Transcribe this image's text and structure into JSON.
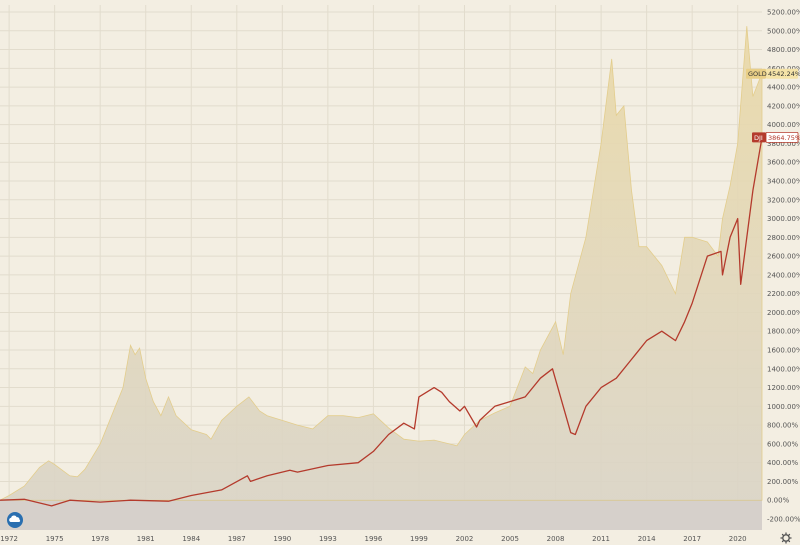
{
  "chart_data": {
    "type": "area",
    "x_unit": "year",
    "x_ticks": [
      "1972",
      "1975",
      "1978",
      "1981",
      "1984",
      "1987",
      "1990",
      "1993",
      "1996",
      "1999",
      "2002",
      "2005",
      "2008",
      "2011",
      "2014",
      "2017",
      "2020"
    ],
    "y_ticks": [
      "-200.00%",
      "0.00%",
      "200.00%",
      "400.00%",
      "600.00%",
      "800.00%",
      "1000.00%",
      "1200.00%",
      "1400.00%",
      "1600.00%",
      "1800.00%",
      "2000.00%",
      "2200.00%",
      "2400.00%",
      "2600.00%",
      "2800.00%",
      "3000.00%",
      "3200.00%",
      "3400.00%",
      "3600.00%",
      "3800.00%",
      "4000.00%",
      "4200.00%",
      "4400.00%",
      "4600.00%",
      "4800.00%",
      "5000.00%",
      "5200.00%"
    ],
    "ylim": [
      -200,
      5200
    ],
    "xlim": [
      1971.4,
      2021.6
    ],
    "grid": true,
    "series": [
      {
        "name": "GOLD",
        "kind": "area",
        "color": "#e9d8a6",
        "last_label": "4542.24%",
        "x": [
          1971.4,
          1972.0,
          1973.0,
          1974.0,
          1974.6,
          1975.0,
          1976.0,
          1976.5,
          1977.0,
          1978.0,
          1979.0,
          1979.5,
          1980.0,
          1980.3,
          1980.6,
          1981.0,
          1981.5,
          1982.0,
          1982.5,
          1983.0,
          1984.0,
          1985.0,
          1985.3,
          1986.0,
          1987.0,
          1987.8,
          1988.5,
          1989.0,
          1990.0,
          1991.0,
          1992.0,
          1993.0,
          1994.0,
          1995.0,
          1996.0,
          1997.0,
          1998.0,
          1999.0,
          2000.0,
          2001.0,
          2001.5,
          2002.0,
          2003.0,
          2004.0,
          2005.0,
          2006.0,
          2006.5,
          2007.0,
          2008.0,
          2008.5,
          2009.0,
          2010.0,
          2011.0,
          2011.7,
          2012.0,
          2012.5,
          2013.0,
          2013.5,
          2014.0,
          2015.0,
          2015.9,
          2016.5,
          2017.0,
          2018.0,
          2018.7,
          2019.0,
          2019.5,
          2020.0,
          2020.6,
          2021.0,
          2021.6
        ],
        "values": [
          0,
          50,
          150,
          350,
          420,
          380,
          260,
          250,
          330,
          600,
          1000,
          1200,
          1650,
          1550,
          1620,
          1300,
          1050,
          900,
          1100,
          900,
          750,
          700,
          650,
          850,
          1000,
          1100,
          950,
          900,
          850,
          800,
          760,
          900,
          900,
          880,
          920,
          770,
          650,
          630,
          640,
          600,
          580,
          700,
          850,
          930,
          1000,
          1420,
          1350,
          1600,
          1900,
          1550,
          2200,
          2800,
          3800,
          4700,
          4100,
          4200,
          3300,
          2700,
          2700,
          2500,
          2200,
          2800,
          2800,
          2750,
          2600,
          3000,
          3350,
          3800,
          5050,
          4300,
          4550
        ]
      },
      {
        "name": "DJI",
        "kind": "line",
        "color": "#b43a2c",
        "last_label": "3864.75%",
        "x": [
          1971.4,
          1973.0,
          1974.8,
          1976.0,
          1978.0,
          1980.0,
          1982.5,
          1984.0,
          1986.0,
          1987.7,
          1987.9,
          1989.0,
          1990.5,
          1991.0,
          1993.0,
          1995.0,
          1996.0,
          1997.0,
          1998.0,
          1998.7,
          1999.0,
          2000.0,
          2000.5,
          2001.0,
          2001.7,
          2002.0,
          2002.8,
          2003.0,
          2004.0,
          2005.0,
          2006.0,
          2007.0,
          2007.8,
          2008.5,
          2009.0,
          2009.3,
          2010.0,
          2011.0,
          2012.0,
          2013.0,
          2014.0,
          2015.0,
          2015.9,
          2016.5,
          2017.0,
          2018.0,
          2018.9,
          2019.0,
          2019.5,
          2020.0,
          2020.2,
          2020.6,
          2021.0,
          2021.6
        ],
        "values": [
          0,
          10,
          -60,
          0,
          -20,
          0,
          -10,
          50,
          110,
          260,
          200,
          260,
          320,
          300,
          370,
          400,
          520,
          700,
          820,
          760,
          1100,
          1200,
          1150,
          1050,
          950,
          1000,
          780,
          850,
          1000,
          1050,
          1100,
          1300,
          1400,
          1000,
          720,
          700,
          1000,
          1200,
          1300,
          1500,
          1700,
          1800,
          1700,
          1900,
          2100,
          2600,
          2650,
          2400,
          2800,
          3000,
          2300,
          2800,
          3300,
          3865
        ]
      }
    ]
  },
  "badges": {
    "gold": {
      "name": "GOLD",
      "value": "4542.24%"
    },
    "dji": {
      "name": "DJI",
      "value": "3864.75%"
    }
  },
  "icons": {
    "logo": "tradingview-cloud-icon",
    "settings": "gear-icon"
  },
  "colors": {
    "background": "#f3eee2",
    "gold_fill": "#e9d8a6",
    "dji_line": "#b43a2c",
    "zero_band": "#d6d0cb"
  }
}
